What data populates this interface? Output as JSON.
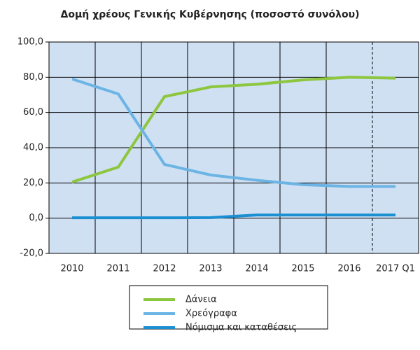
{
  "chart_data": {
    "type": "line",
    "title": "Δομή χρέους Γενικής Κυβέρνησης (ποσοστό συνόλου)",
    "categories": [
      "2010",
      "2011",
      "2012",
      "2013",
      "2014",
      "2015",
      "2016",
      "2017 Q1"
    ],
    "series": [
      {
        "name": "Δάνεια",
        "color": "#8dc63f",
        "values": [
          20.5,
          29,
          69,
          74.5,
          76,
          78.5,
          80,
          79.5
        ]
      },
      {
        "name": "Χρεόγραφα",
        "color": "#6cb4e4",
        "values": [
          79,
          70.5,
          30.5,
          24.5,
          21.5,
          19,
          18,
          18
        ]
      },
      {
        "name": "Νόμισμα και καταθέσεις",
        "color": "#1a8fd1",
        "values": [
          0.2,
          0.2,
          0.2,
          0.3,
          1.8,
          1.8,
          1.8,
          1.8
        ]
      }
    ],
    "ylim": [
      -20,
      100
    ],
    "yticks": [
      {
        "value": -20,
        "label": "-20,0"
      },
      {
        "value": 0,
        "label": "0,0"
      },
      {
        "value": 20,
        "label": "20,0"
      },
      {
        "value": 40,
        "label": "40,0"
      },
      {
        "value": 60,
        "label": "60,0"
      },
      {
        "value": 80,
        "label": "80,0"
      },
      {
        "value": 100,
        "label": "100,0"
      }
    ],
    "grid": true
  }
}
